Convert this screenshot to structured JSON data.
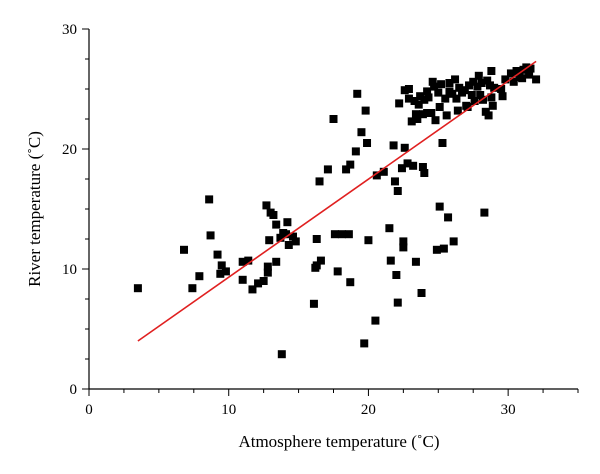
{
  "chart_data": {
    "type": "scatter",
    "title": "",
    "xlabel": "Atmosphere temperature (˚C)",
    "ylabel": "River temperature (˚C)",
    "xlim": [
      0,
      35
    ],
    "ylim": [
      0,
      30
    ],
    "xticks": [
      0,
      10,
      20,
      30
    ],
    "yticks": [
      0,
      10,
      20,
      30
    ],
    "grid": false,
    "legend": "none",
    "marker_color": "#000000",
    "line_color": "#e02020",
    "series": [
      {
        "kind": "points",
        "points": [
          [
            3.5,
            8.4
          ],
          [
            6.8,
            11.6
          ],
          [
            7.4,
            8.4
          ],
          [
            7.9,
            9.4
          ],
          [
            8.6,
            15.8
          ],
          [
            8.7,
            12.8
          ],
          [
            9.2,
            11.2
          ],
          [
            9.5,
            10.3
          ],
          [
            9.4,
            9.6
          ],
          [
            9.8,
            9.8
          ],
          [
            11.0,
            9.1
          ],
          [
            11.0,
            10.6
          ],
          [
            11.4,
            10.7
          ],
          [
            11.7,
            8.3
          ],
          [
            12.1,
            8.8
          ],
          [
            12.5,
            9.0
          ],
          [
            12.7,
            15.3
          ],
          [
            12.8,
            9.7
          ],
          [
            12.8,
            10.2
          ],
          [
            12.9,
            12.4
          ],
          [
            13.0,
            14.7
          ],
          [
            13.2,
            14.5
          ],
          [
            13.4,
            13.7
          ],
          [
            13.4,
            10.6
          ],
          [
            13.7,
            12.6
          ],
          [
            13.8,
            2.9
          ],
          [
            13.9,
            13.0
          ],
          [
            14.1,
            12.9
          ],
          [
            14.2,
            13.9
          ],
          [
            14.3,
            12.0
          ],
          [
            14.6,
            12.7
          ],
          [
            14.8,
            12.3
          ],
          [
            16.1,
            7.1
          ],
          [
            16.2,
            10.1
          ],
          [
            16.3,
            10.3
          ],
          [
            16.3,
            12.5
          ],
          [
            16.5,
            17.3
          ],
          [
            16.6,
            10.7
          ],
          [
            17.1,
            18.3
          ],
          [
            17.5,
            22.5
          ],
          [
            17.6,
            12.9
          ],
          [
            17.8,
            9.8
          ],
          [
            18.1,
            12.9
          ],
          [
            18.4,
            18.3
          ],
          [
            18.6,
            12.9
          ],
          [
            18.7,
            18.7
          ],
          [
            18.7,
            8.9
          ],
          [
            19.1,
            19.8
          ],
          [
            19.2,
            24.6
          ],
          [
            19.5,
            21.4
          ],
          [
            19.7,
            3.8
          ],
          [
            19.8,
            23.2
          ],
          [
            19.9,
            20.5
          ],
          [
            20.0,
            12.4
          ],
          [
            20.5,
            5.7
          ],
          [
            20.6,
            17.8
          ],
          [
            21.1,
            18.1
          ],
          [
            21.5,
            13.4
          ],
          [
            21.6,
            10.7
          ],
          [
            21.8,
            20.3
          ],
          [
            21.9,
            17.3
          ],
          [
            22.0,
            9.5
          ],
          [
            22.1,
            7.2
          ],
          [
            22.1,
            16.5
          ],
          [
            22.2,
            23.8
          ],
          [
            22.4,
            18.4
          ],
          [
            22.5,
            12.3
          ],
          [
            22.5,
            11.8
          ],
          [
            22.6,
            20.1
          ],
          [
            22.6,
            24.9
          ],
          [
            22.8,
            18.8
          ],
          [
            22.9,
            25.0
          ],
          [
            22.9,
            24.2
          ],
          [
            23.1,
            22.3
          ],
          [
            23.2,
            18.6
          ],
          [
            23.3,
            24.0
          ],
          [
            23.4,
            10.6
          ],
          [
            23.4,
            22.9
          ],
          [
            23.5,
            22.5
          ],
          [
            23.6,
            23.7
          ],
          [
            23.7,
            24.4
          ],
          [
            23.8,
            8.0
          ],
          [
            23.9,
            22.9
          ],
          [
            23.9,
            18.5
          ],
          [
            24.0,
            24.1
          ],
          [
            24.0,
            18.0
          ],
          [
            24.2,
            23.0
          ],
          [
            24.2,
            24.8
          ],
          [
            24.3,
            24.3
          ],
          [
            24.5,
            23.0
          ],
          [
            24.6,
            25.6
          ],
          [
            24.7,
            25.2
          ],
          [
            24.8,
            22.4
          ],
          [
            24.9,
            11.6
          ],
          [
            25.0,
            24.7
          ],
          [
            25.1,
            23.5
          ],
          [
            25.1,
            15.2
          ],
          [
            25.2,
            25.4
          ],
          [
            25.3,
            20.5
          ],
          [
            25.4,
            11.7
          ],
          [
            25.5,
            24.2
          ],
          [
            25.6,
            22.8
          ],
          [
            25.7,
            14.3
          ],
          [
            25.8,
            24.8
          ],
          [
            25.8,
            25.5
          ],
          [
            26.0,
            24.6
          ],
          [
            26.1,
            12.3
          ],
          [
            26.2,
            25.8
          ],
          [
            26.3,
            24.2
          ],
          [
            26.4,
            23.2
          ],
          [
            26.5,
            25.1
          ],
          [
            26.7,
            24.7
          ],
          [
            26.9,
            24.9
          ],
          [
            27.0,
            23.6
          ],
          [
            27.1,
            23.5
          ],
          [
            27.2,
            25.3
          ],
          [
            27.4,
            24.5
          ],
          [
            27.5,
            25.6
          ],
          [
            27.6,
            24.0
          ],
          [
            27.8,
            25.2
          ],
          [
            27.9,
            26.1
          ],
          [
            28.0,
            24.5
          ],
          [
            28.1,
            25.5
          ],
          [
            28.2,
            24.1
          ],
          [
            28.3,
            14.7
          ],
          [
            28.4,
            23.1
          ],
          [
            28.5,
            25.7
          ],
          [
            28.6,
            22.8
          ],
          [
            28.7,
            25.3
          ],
          [
            28.8,
            24.3
          ],
          [
            28.8,
            26.5
          ],
          [
            28.9,
            23.6
          ],
          [
            29.0,
            25.1
          ],
          [
            29.5,
            25.0
          ],
          [
            29.6,
            24.4
          ],
          [
            29.8,
            25.8
          ],
          [
            30.2,
            26.3
          ],
          [
            30.4,
            25.6
          ],
          [
            30.6,
            26.5
          ],
          [
            30.8,
            26.0
          ],
          [
            31.0,
            25.9
          ],
          [
            31.1,
            26.6
          ],
          [
            31.3,
            26.8
          ],
          [
            31.5,
            26.2
          ],
          [
            31.6,
            26.7
          ],
          [
            32.0,
            25.8
          ]
        ]
      },
      {
        "kind": "fit-line",
        "points": [
          [
            3.5,
            4.0
          ],
          [
            32.0,
            27.3
          ]
        ]
      }
    ]
  }
}
